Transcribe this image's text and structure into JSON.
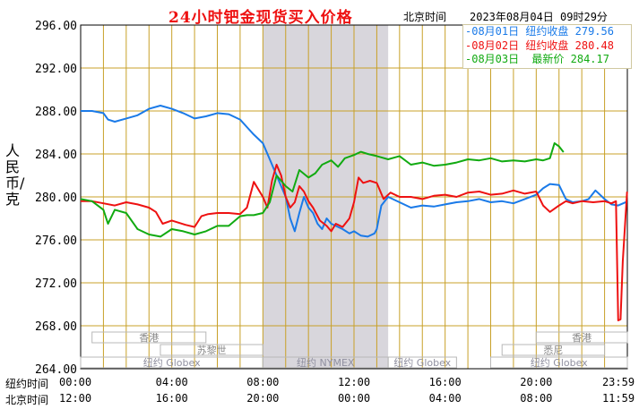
{
  "header": {
    "title": "24小时钯金现货买入价格",
    "beijing_label": "北京时间",
    "timestamp": "2023年08月04日 09时29分"
  },
  "legend": {
    "items": [
      {
        "date": "08月01日",
        "label": "纽约收盘",
        "value": "279.56",
        "color": "#1a7ae8"
      },
      {
        "date": "08月02日",
        "label": "纽约收盘",
        "value": "280.48",
        "color": "#ee1111"
      },
      {
        "date": "08月03日",
        "label": "最新价",
        "value": "284.17",
        "color": "#11aa11"
      }
    ]
  },
  "axes": {
    "ylabel": "人民币/克",
    "row_labels": {
      "newyork": "纽约时间",
      "beijing": "北京时间"
    }
  },
  "sessions": [
    {
      "name": "香港"
    },
    {
      "name": "苏黎世"
    },
    {
      "name": "纽约 Globex"
    },
    {
      "name": "纽约 NYMEX"
    },
    {
      "name": "纽约 Globex"
    },
    {
      "name": "悉尼"
    },
    {
      "name": "香港"
    },
    {
      "name": "纽约 Globex"
    }
  ],
  "colors": {
    "grid": "#c8a028",
    "shade": "#d8d6dc",
    "bg": "#ffffff"
  },
  "chart_data": {
    "type": "line",
    "title": "24小时钯金现货买入价格",
    "ylabel": "人民币/克",
    "ylim": [
      264,
      296
    ],
    "yticks": [
      "264.00",
      "268.00",
      "272.00",
      "276.00",
      "280.00",
      "284.00",
      "288.00",
      "292.00",
      "296.00"
    ],
    "xlim": [
      0,
      24
    ],
    "xticks_newyork": [
      "00:00",
      "04:00",
      "08:00",
      "12:00",
      "16:00",
      "20:00",
      "23:59"
    ],
    "xticks_beijing": [
      "12:00",
      "16:00",
      "20:00",
      "00:00",
      "04:00",
      "08:00",
      "11:59"
    ],
    "xticks_hours": [
      0,
      4,
      8,
      12,
      16,
      20,
      24
    ],
    "grid": true,
    "legend_position": "top-right",
    "series": [
      {
        "name": "08月01日 纽约收盘",
        "color": "#1a7ae8",
        "x": [
          0,
          0.5,
          1,
          1.2,
          1.5,
          2,
          2.5,
          3,
          3.5,
          4,
          4.5,
          5,
          5.5,
          6,
          6.5,
          7,
          7.3,
          7.6,
          8,
          8.3,
          8.6,
          9,
          9.2,
          9.4,
          9.6,
          9.8,
          10,
          10.2,
          10.4,
          10.6,
          10.8,
          11,
          11.2,
          11.5,
          11.8,
          12,
          12.3,
          12.6,
          12.9,
          13,
          13.2,
          13.5,
          14,
          14.5,
          15,
          15.5,
          16,
          16.5,
          17,
          17.5,
          18,
          18.5,
          19,
          19.5,
          20,
          20.3,
          20.6,
          21,
          21.3,
          21.6,
          22,
          22.3,
          22.6,
          23,
          23.3,
          23.6,
          23.99
        ],
        "values": [
          288.0,
          288.0,
          287.8,
          287.2,
          287.0,
          287.3,
          287.6,
          288.2,
          288.5,
          288.2,
          287.8,
          287.3,
          287.5,
          287.8,
          287.7,
          287.2,
          286.5,
          285.8,
          285.0,
          283.5,
          282.0,
          280.0,
          278.0,
          276.8,
          278.5,
          280.0,
          279.0,
          278.5,
          277.5,
          277.0,
          278.0,
          277.5,
          277.3,
          277.0,
          276.6,
          276.8,
          276.4,
          276.3,
          276.6,
          277.0,
          279.2,
          280.0,
          279.5,
          279.0,
          279.2,
          279.1,
          279.3,
          279.5,
          279.6,
          279.8,
          279.5,
          279.6,
          279.4,
          279.8,
          280.2,
          280.8,
          281.2,
          281.1,
          279.8,
          279.5,
          279.6,
          279.8,
          280.6,
          279.8,
          279.3,
          279.2,
          279.56
        ]
      },
      {
        "name": "08月02日 纽约收盘",
        "color": "#ee1111",
        "x": [
          0,
          0.5,
          1,
          1.5,
          2,
          2.5,
          3,
          3.3,
          3.6,
          4,
          4.3,
          4.6,
          5,
          5.3,
          5.6,
          6,
          6.5,
          7,
          7.3,
          7.6,
          8,
          8.2,
          8.4,
          8.6,
          8.8,
          9,
          9.2,
          9.4,
          9.6,
          9.8,
          10,
          10.2,
          10.5,
          10.8,
          11,
          11.2,
          11.5,
          11.8,
          12,
          12.2,
          12.4,
          12.7,
          13,
          13.3,
          13.6,
          14,
          14.5,
          15,
          15.5,
          16,
          16.5,
          17,
          17.5,
          18,
          18.5,
          19,
          19.5,
          20,
          20.3,
          20.6,
          21,
          21.3,
          21.6,
          22,
          22.5,
          23,
          23.3,
          23.5,
          23.6,
          23.7,
          23.8,
          23.99
        ],
        "values": [
          279.6,
          279.6,
          279.4,
          279.2,
          279.5,
          279.3,
          279.0,
          278.6,
          277.5,
          277.8,
          277.6,
          277.4,
          277.2,
          278.2,
          278.4,
          278.5,
          278.5,
          278.4,
          279.0,
          281.4,
          280.0,
          279.0,
          281.5,
          283.0,
          282.0,
          280.0,
          279.0,
          279.5,
          281.0,
          280.5,
          279.6,
          279.0,
          277.8,
          277.3,
          276.8,
          277.5,
          277.2,
          278.0,
          279.5,
          281.8,
          281.3,
          281.5,
          281.3,
          279.8,
          280.4,
          280.0,
          280.0,
          279.8,
          280.1,
          280.2,
          280.0,
          280.4,
          280.5,
          280.2,
          280.3,
          280.6,
          280.3,
          280.5,
          279.2,
          278.6,
          279.2,
          279.6,
          279.4,
          279.6,
          279.5,
          279.6,
          279.4,
          279.6,
          268.5,
          268.6,
          274.0,
          280.48
        ]
      },
      {
        "name": "08月03日 最新价",
        "color": "#11aa11",
        "x": [
          0,
          0.5,
          1,
          1.2,
          1.5,
          2,
          2.5,
          3,
          3.5,
          4,
          4.5,
          5,
          5.5,
          6,
          6.5,
          7,
          7.3,
          7.6,
          8,
          8.3,
          8.6,
          9,
          9.3,
          9.6,
          10,
          10.3,
          10.6,
          11,
          11.3,
          11.6,
          12,
          12.3,
          12.6,
          13,
          13.5,
          14,
          14.5,
          15,
          15.5,
          16,
          16.5,
          17,
          17.5,
          18,
          18.5,
          19,
          19.5,
          20,
          20.3,
          20.6,
          20.8,
          21,
          21.2
        ],
        "values": [
          279.8,
          279.6,
          278.8,
          277.5,
          278.8,
          278.5,
          277.0,
          276.5,
          276.3,
          277.0,
          276.8,
          276.5,
          276.8,
          277.3,
          277.3,
          278.2,
          278.3,
          278.3,
          278.5,
          279.5,
          282.0,
          281.0,
          280.5,
          282.5,
          281.8,
          282.2,
          283.0,
          283.4,
          282.8,
          283.6,
          283.9,
          284.2,
          284.0,
          283.8,
          283.5,
          283.8,
          283.0,
          283.2,
          282.9,
          283.0,
          283.2,
          283.5,
          283.4,
          283.6,
          283.3,
          283.4,
          283.3,
          283.5,
          283.4,
          283.6,
          285.0,
          284.7,
          284.17
        ]
      }
    ]
  }
}
